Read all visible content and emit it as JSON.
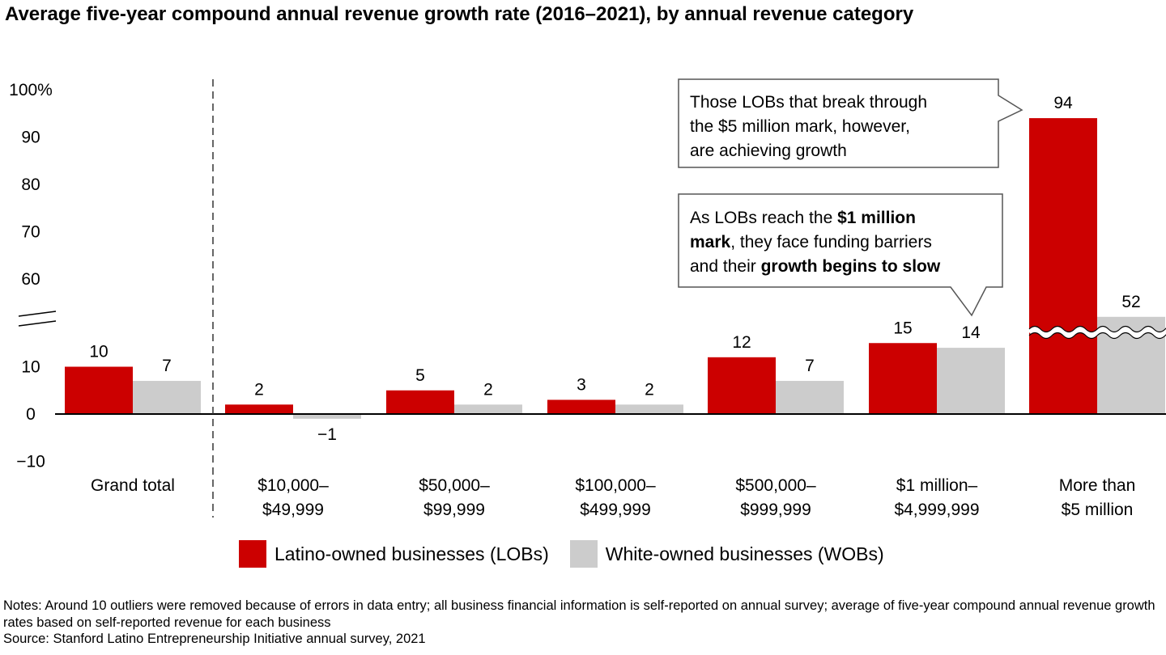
{
  "title": "Average five-year compound annual revenue growth rate (2016–2021), by annual revenue category",
  "chart_data": {
    "type": "bar",
    "categories": [
      [
        "Grand total"
      ],
      [
        "$10,000–",
        "$49,999"
      ],
      [
        "$50,000–",
        "$99,999"
      ],
      [
        "$100,000–",
        "$499,999"
      ],
      [
        "$500,000–",
        "$999,999"
      ],
      [
        "$1 million–",
        "$4,999,999"
      ],
      [
        "More than",
        "$5 million"
      ]
    ],
    "series": [
      {
        "name": "Latino-owned businesses (LOBs)",
        "color": "#cc0000",
        "values": [
          10,
          2,
          5,
          3,
          12,
          15,
          94
        ]
      },
      {
        "name": "White-owned businesses (WOBs)",
        "color": "#cccccc",
        "values": [
          7,
          -1,
          2,
          2,
          7,
          14,
          52
        ]
      }
    ],
    "data_labels": [
      [
        "10",
        "2",
        "5",
        "3",
        "12",
        "15",
        "94"
      ],
      [
        "7",
        "−1",
        "2",
        "2",
        "7",
        "14",
        "52"
      ]
    ],
    "y_ticks": [
      "100%",
      "90",
      "80",
      "70",
      "60",
      "10",
      "0",
      "−10"
    ],
    "ylim": [
      -10,
      100
    ],
    "axis_break": true,
    "grid": false,
    "legend_position": "bottom"
  },
  "callouts": {
    "top": {
      "lines": [
        [
          {
            "t": "Those LOBs that break through",
            "b": false
          }
        ],
        [
          {
            "t": "the $5 million mark, however,",
            "b": false
          }
        ],
        [
          {
            "t": "are achieving growth",
            "b": false
          }
        ]
      ]
    },
    "mid": {
      "lines": [
        [
          {
            "t": "As LOBs reach the ",
            "b": false
          },
          {
            "t": "$1 million",
            "b": true
          }
        ],
        [
          {
            "t": "mark",
            "b": true
          },
          {
            "t": ", they face funding barriers",
            "b": false
          }
        ],
        [
          {
            "t": "and their ",
            "b": false
          },
          {
            "t": "growth begins to slow",
            "b": true
          }
        ]
      ]
    }
  },
  "notes": [
    "Notes: Around 10 outliers were removed because of errors in data entry; all business financial information is self-reported on annual survey; average of five-year compound annual revenue growth rates based on self-reported revenue for each business",
    "Source: Stanford Latino Entrepreneurship Initiative annual survey, 2021"
  ]
}
